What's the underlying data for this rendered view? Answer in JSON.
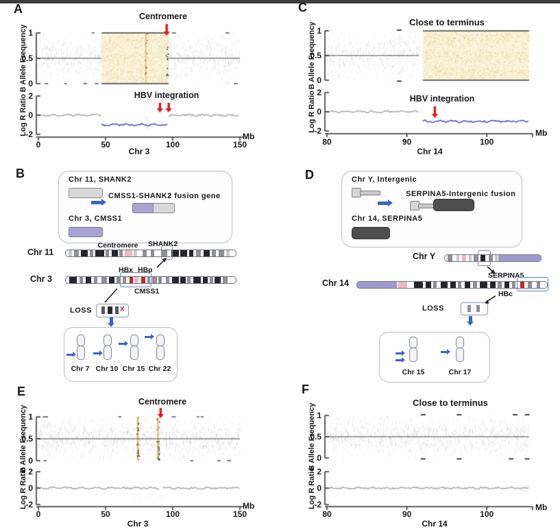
{
  "figure": {
    "panel_letters": {
      "A": "A",
      "B": "B",
      "C": "C",
      "D": "D",
      "E": "E",
      "F": "F"
    }
  },
  "colors": {
    "red_arrow": "#e0181c",
    "blue_accent": "#3a66c2",
    "loh_fill": "#faf3da",
    "loh_speckle": "#d9a23c",
    "lrr_blue": "#3434b2",
    "lrr_gray": "#9a9aa0",
    "scatter_gray": "#63636a",
    "axis": "#2b2b2b",
    "band_palette": {
      "black": "#26262a",
      "gray": "#8f8f96",
      "lgray": "#c9c9cf",
      "pink": "#f0b6c2",
      "red": "#c8202c",
      "purple": "#9f9ad0"
    }
  },
  "chart_data": [
    {
      "panel": "A",
      "type": "scatter",
      "xlabel": "Chr 3",
      "x_unit": "Mb",
      "xlim": [
        0,
        150
      ],
      "x_ticks": [
        0,
        50,
        100,
        150
      ],
      "baf": {
        "ylabel": "B Allele Frequency",
        "ylim": [
          0,
          1
        ],
        "y_ticks": [
          1,
          0.5,
          0
        ],
        "centerline": 0.5,
        "normal_segments_mb": [
          [
            0,
            47
          ],
          [
            97,
            150
          ]
        ],
        "loh_region_mb": [
          47,
          97
        ],
        "streak_columns_mb": [
          80
        ],
        "dark_dot_columns_mb": [
          95.5
        ],
        "random_edge_dashes": 8
      },
      "lrr": {
        "ylabel": "Log R Ratio",
        "ylim": [
          -2,
          2
        ],
        "y_ticks": [
          2,
          0,
          -2
        ],
        "segments": [
          {
            "x_mb": [
              0,
              47
            ],
            "y": 0,
            "series": "normal"
          },
          {
            "x_mb": [
              47,
              97
            ],
            "y": -1,
            "series": "deletion"
          },
          {
            "x_mb": [
              97,
              150
            ],
            "y": 0,
            "series": "normal"
          }
        ],
        "smudges": [
          {
            "x_mb": [
              78,
              82
            ],
            "y": [
              -0.1,
              -1.4
            ]
          }
        ]
      },
      "annotations": [
        {
          "text": "Centromere",
          "zone": "baf-top",
          "arrow_x_mb": [
            95.5
          ]
        },
        {
          "text": "HBV integration",
          "zone": "lrr",
          "arrow_x_mb": [
            90.5,
            97
          ]
        }
      ]
    },
    {
      "panel": "C",
      "type": "scatter",
      "xlabel": "Chr 14",
      "x_unit": "Mb",
      "xlim": [
        80,
        105.3
      ],
      "x_ticks": [
        80,
        90,
        100
      ],
      "baf": {
        "ylabel": "B Allele Frequency",
        "ylim": [
          0,
          1
        ],
        "y_ticks": [
          1,
          0.5,
          0
        ],
        "centerline": 0.5,
        "normal_segments_mb": [
          [
            80,
            91.5
          ]
        ],
        "loh_region_mb": [
          92,
          105.3
        ],
        "edge_dashes_top_mb": [
          89
        ],
        "edge_dashes_bottom_mb": [
          89
        ],
        "random_edge_dashes": 0
      },
      "lrr": {
        "ylabel": "Log R Ratio",
        "ylim": [
          -2,
          2
        ],
        "y_ticks": [
          2,
          0,
          -2
        ],
        "segments": [
          {
            "x_mb": [
              80,
              91.5
            ],
            "y": 0,
            "series": "normal"
          },
          {
            "x_mb": [
              92,
              105.3
            ],
            "y": -1,
            "series": "deletion"
          }
        ],
        "smudges": []
      },
      "annotations": [
        {
          "text": "Close to terminus",
          "zone": "baf-top",
          "arrow_x_mb": []
        },
        {
          "text": "HBV integration",
          "zone": "lrr",
          "arrow_x_mb": [
            93.5
          ]
        }
      ]
    },
    {
      "panel": "E",
      "type": "scatter",
      "xlabel": "Chr 3",
      "x_unit": "Mb",
      "xlim": [
        0,
        150
      ],
      "x_ticks": [
        0,
        50,
        100,
        150
      ],
      "baf": {
        "ylabel": "B Allele Frequency",
        "ylim": [
          0,
          1
        ],
        "y_ticks": [
          1,
          0.5,
          0
        ],
        "centerline": 0.5,
        "normal_segments_mb": [
          [
            0,
            150
          ]
        ],
        "streak_columns_mb": [
          74,
          89
        ],
        "dark_dot_columns_mb": [
          74,
          89
        ],
        "random_edge_dashes": 10
      },
      "lrr": {
        "ylabel": "Log R Ratio",
        "ylim": [
          -2,
          2
        ],
        "y_ticks": [
          2,
          0,
          -2
        ],
        "segments": [
          {
            "x_mb": [
              0,
              90.5
            ],
            "y": 0,
            "series": "normal"
          },
          {
            "x_mb": [
              92.5,
              150
            ],
            "y": 0,
            "series": "normal"
          }
        ],
        "smudges": [
          {
            "x_mb": [
              68,
              93
            ],
            "y": [
              -0.4,
              -1.6
            ]
          }
        ]
      },
      "annotations": [
        {
          "text": "Centromere",
          "zone": "baf-top",
          "arrow_x_mb": [
            91
          ]
        }
      ]
    },
    {
      "panel": "F",
      "type": "scatter",
      "xlabel": "Chr 14",
      "x_unit": "Mb",
      "xlim": [
        80,
        105.3
      ],
      "x_ticks": [
        80,
        90,
        100
      ],
      "baf": {
        "ylabel": "B Allele Frequency",
        "ylim": [
          0,
          1
        ],
        "y_ticks": [
          1,
          0.5,
          0
        ],
        "centerline": 0.5,
        "normal_segments_mb": [
          [
            80,
            105.3
          ]
        ],
        "edge_dashes_top_mb": [
          92,
          96.5,
          103.5,
          105
        ],
        "edge_dashes_bottom_mb": [
          92,
          96.5,
          103,
          105
        ],
        "random_edge_dashes": 0
      },
      "lrr": {
        "ylabel": "Log R Ratio",
        "ylim": [
          -2,
          2
        ],
        "y_ticks": [
          2,
          0,
          -2
        ],
        "segments": [
          {
            "x_mb": [
              80,
              105.3
            ],
            "y": 0,
            "series": "normal"
          }
        ],
        "smudges": [
          {
            "x_mb": [
              104,
              105.3
            ],
            "y": [
              0.6,
              -0.6
            ]
          }
        ]
      },
      "annotations": [
        {
          "text": "Close to terminus",
          "zone": "baf-top",
          "arrow_x_mb": []
        }
      ]
    }
  ],
  "fusion_diagrams": {
    "B": {
      "legend_box": {
        "line1": "Chr 11, SHANK2",
        "line2": "Chr 3, CMSS1",
        "result": "CMSS1-SHANK2 fusion gene"
      },
      "chr11": {
        "name": "Chr 11",
        "centromere_label": "Centromere",
        "gene_label": "SHANK2",
        "bands": [
          [
            0.015,
            0.02,
            "lgray"
          ],
          [
            0.05,
            0.025,
            "gray"
          ],
          [
            0.09,
            0.04,
            "black"
          ],
          [
            0.14,
            0.02,
            "gray"
          ],
          [
            0.175,
            0.05,
            "black"
          ],
          [
            0.235,
            0.02,
            "gray"
          ],
          [
            0.27,
            0.035,
            "black"
          ],
          [
            0.315,
            0.02,
            "gray"
          ],
          [
            0.345,
            0.045,
            "pink"
          ],
          [
            0.4,
            0.02,
            "lgray"
          ],
          [
            0.45,
            0.025,
            "gray"
          ],
          [
            0.5,
            0.02,
            "gray"
          ],
          [
            0.565,
            0.03,
            "gray"
          ],
          [
            0.62,
            0.045,
            "black"
          ],
          [
            0.675,
            0.04,
            "black"
          ],
          [
            0.725,
            0.025,
            "black"
          ],
          [
            0.765,
            0.03,
            "gray"
          ],
          [
            0.81,
            0.035,
            "black"
          ],
          [
            0.86,
            0.025,
            "gray"
          ],
          [
            0.9,
            0.03,
            "gray"
          ],
          [
            0.945,
            0.02,
            "lgray"
          ]
        ]
      },
      "chr3": {
        "name": "Chr 3",
        "hbx": "HBx",
        "hbp": "HBp",
        "gene_label": "CMSS1",
        "bands": [
          [
            0.02,
            0.045,
            "black"
          ],
          [
            0.08,
            0.02,
            "gray"
          ],
          [
            0.115,
            0.035,
            "black"
          ],
          [
            0.165,
            0.02,
            "gray"
          ],
          [
            0.21,
            0.03,
            "gray"
          ],
          [
            0.255,
            0.03,
            "black"
          ],
          [
            0.3,
            0.02,
            "gray"
          ],
          [
            0.335,
            0.018,
            "gray"
          ],
          [
            0.375,
            0.022,
            "red"
          ],
          [
            0.405,
            0.022,
            "pink"
          ],
          [
            0.445,
            0.022,
            "red"
          ],
          [
            0.478,
            0.02,
            "gray"
          ],
          [
            0.51,
            0.025,
            "gray"
          ],
          [
            0.545,
            0.02,
            "gray"
          ],
          [
            0.59,
            0.02,
            "gray"
          ],
          [
            0.625,
            0.04,
            "black"
          ],
          [
            0.675,
            0.03,
            "black"
          ],
          [
            0.715,
            0.02,
            "gray"
          ],
          [
            0.75,
            0.045,
            "black"
          ],
          [
            0.805,
            0.03,
            "black"
          ],
          [
            0.845,
            0.02,
            "gray"
          ],
          [
            0.875,
            0.035,
            "black"
          ],
          [
            0.925,
            0.025,
            "gray"
          ]
        ]
      },
      "loss": {
        "label": "LOSS",
        "x_mark": "X"
      },
      "karyotype": {
        "chromosomes": [
          {
            "name": "Chr 7",
            "arrows": 1
          },
          {
            "name": "Chr 10",
            "arrows": 1
          },
          {
            "name": "Chr 15",
            "arrows": 1
          },
          {
            "name": "Chr 22",
            "arrows": 1
          }
        ]
      }
    },
    "D": {
      "legend_box": {
        "line1": "Chr Y, Intergenic",
        "line2": "Chr 14, SERPINA5",
        "result": "SERPINA5-Intergenic fusion"
      },
      "chrY": {
        "name": "Chr Y",
        "bands": [
          [
            0.03,
            0.05,
            "gray"
          ],
          [
            0.12,
            0.03,
            "lgray"
          ],
          [
            0.18,
            0.04,
            "pink"
          ],
          [
            0.25,
            0.03,
            "lgray"
          ],
          [
            0.3,
            0.05,
            "gray"
          ],
          [
            0.37,
            0.05,
            "black"
          ],
          [
            0.46,
            0.04,
            "gray"
          ],
          [
            0.52,
            0.03,
            "lgray"
          ],
          [
            0.56,
            0.44,
            "purple"
          ]
        ]
      },
      "chr14": {
        "name": "Chr 14",
        "bands": [
          [
            0,
            0.21,
            "purple"
          ],
          [
            0.215,
            0.05,
            "pink"
          ],
          [
            0.3,
            0.045,
            "black"
          ],
          [
            0.36,
            0.03,
            "black"
          ],
          [
            0.4,
            0.02,
            "gray"
          ],
          [
            0.44,
            0.035,
            "black"
          ],
          [
            0.49,
            0.03,
            "black"
          ],
          [
            0.53,
            0.02,
            "gray"
          ],
          [
            0.565,
            0.03,
            "black"
          ],
          [
            0.61,
            0.02,
            "gray"
          ],
          [
            0.645,
            0.04,
            "black"
          ],
          [
            0.7,
            0.03,
            "black"
          ],
          [
            0.74,
            0.02,
            "gray"
          ],
          [
            0.775,
            0.025,
            "black"
          ],
          [
            0.815,
            0.02,
            "gray"
          ],
          [
            0.86,
            0.022,
            "red"
          ],
          [
            0.9,
            0.02,
            "gray"
          ],
          [
            0.945,
            0.02,
            "gray"
          ]
        ]
      },
      "serpina5_label": "SERPINA5",
      "hbc_label": "HBc",
      "loss": {
        "label": "LOSS"
      },
      "karyotype": {
        "chromosomes": [
          {
            "name": "Chr 15",
            "arrows": 2
          },
          {
            "name": "Chr 17",
            "arrows": 1
          }
        ]
      }
    }
  }
}
